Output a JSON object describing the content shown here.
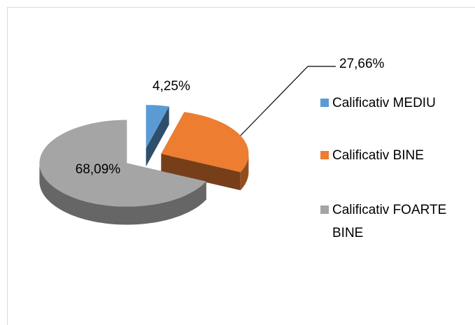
{
  "chart_data": {
    "type": "pie3d",
    "categories": [
      "Calificativ MEDIU",
      "Calificativ BINE",
      "Calificativ FOARTE BINE"
    ],
    "values": [
      4.25,
      27.66,
      68.09
    ],
    "value_labels": [
      "4,25%",
      "27,66%",
      "68,09%"
    ],
    "colors": [
      "#5b9bd5",
      "#ed7d31",
      "#a5a5a5"
    ],
    "legend": "right"
  }
}
